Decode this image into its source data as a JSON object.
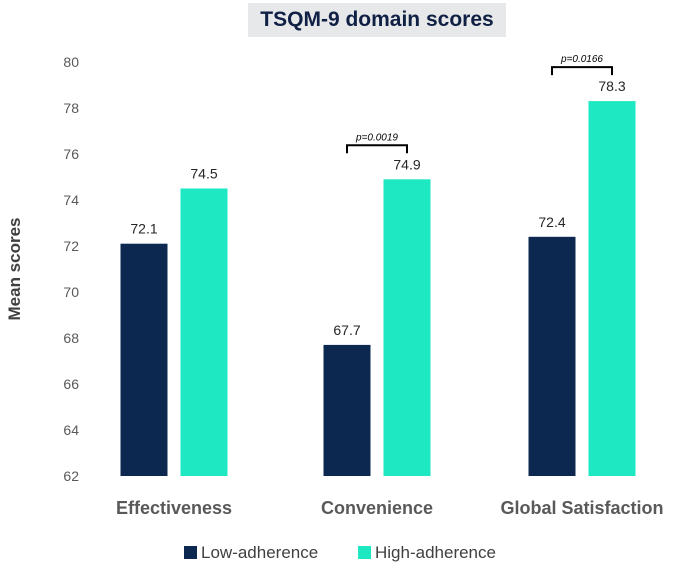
{
  "chart_data": {
    "type": "bar",
    "title": "TSQM-9 domain scores",
    "ylabel": "Mean scores",
    "xlabel": "",
    "categories": [
      "Effectiveness",
      "Convenience",
      "Global Satisfaction"
    ],
    "series": [
      {
        "name": "Low-adherence",
        "color": "#0d2850",
        "values": [
          72.1,
          67.7,
          72.4
        ],
        "labels": [
          "72.1",
          "67.7",
          "72.4"
        ]
      },
      {
        "name": "High-adherence",
        "color": "#1ee8c1",
        "values": [
          74.5,
          74.9,
          78.3
        ],
        "labels": [
          "74.5",
          "74.9",
          "78.3"
        ]
      }
    ],
    "ylim": [
      62,
      80
    ],
    "yticks": [
      62,
      64,
      66,
      68,
      70,
      72,
      74,
      76,
      78,
      80
    ],
    "grid": false,
    "legend": "bottom",
    "annotations": [
      {
        "category": "Convenience",
        "text": "p=0.0019"
      },
      {
        "category": "Global Satisfaction",
        "text": "p=0.0166"
      }
    ]
  }
}
